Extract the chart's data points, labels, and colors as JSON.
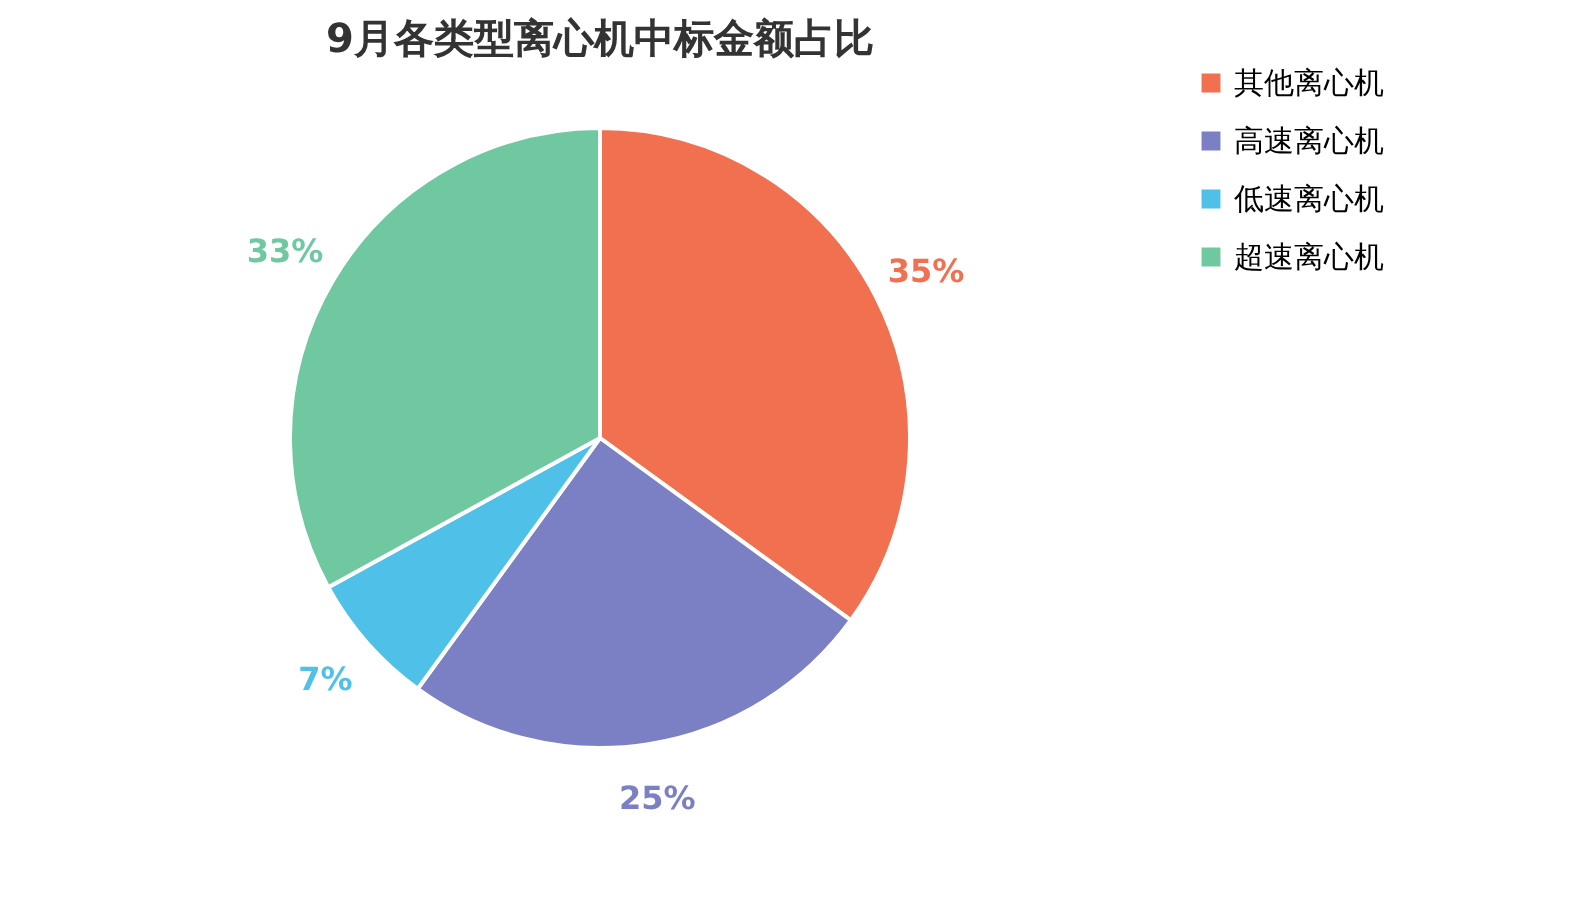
{
  "chart_data": {
    "type": "pie",
    "title": "9月各类型离心机中标金额占比",
    "categories": [
      "其他离心机",
      "高速离心机",
      "低速离心机",
      "超速离心机"
    ],
    "values": [
      35,
      25,
      7,
      33
    ],
    "colors": [
      "#f07050",
      "#7b7fc4",
      "#4fc0e8",
      "#70c8a0"
    ],
    "value_labels": [
      "35%",
      "25%",
      "7%",
      "33%"
    ],
    "legend": "right"
  }
}
